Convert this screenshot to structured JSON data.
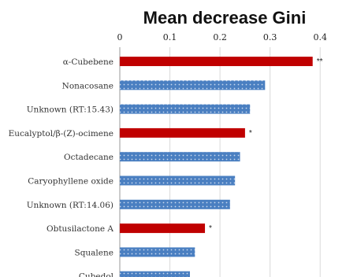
{
  "chart_data": {
    "type": "bar",
    "orientation": "horizontal",
    "title": "Mean decrease Gini",
    "xlabel": "",
    "ylabel": "",
    "xlim": [
      0,
      0.45
    ],
    "ticks": [
      "0",
      "0.1",
      "0.2",
      "0.3",
      "0.4"
    ],
    "tick_values": [
      0,
      0.1,
      0.2,
      0.3,
      0.4
    ],
    "grid": true,
    "categories": [
      "α-Cubebene",
      "Nonacosane",
      "Unknown (RT:15.43)",
      "Eucalyptol/β-(Z)-ocimene",
      "Octadecane",
      "Caryophyllene oxide",
      "Unknown (RT:14.06)",
      "Obtusilactone A",
      "Squalene",
      "Cubedol"
    ],
    "values": [
      0.385,
      0.29,
      0.26,
      0.25,
      0.24,
      0.23,
      0.22,
      0.17,
      0.15,
      0.14
    ],
    "annotations": [
      "**",
      "",
      "",
      "*",
      "",
      "",
      "",
      "*",
      "",
      ""
    ],
    "highlight": [
      true,
      false,
      false,
      true,
      false,
      false,
      false,
      true,
      false,
      false
    ],
    "colors": {
      "highlight": "#c00000",
      "normal": "#4a7fc1",
      "normal_dots": "#c9d9ef",
      "grid": "#d9d9d9",
      "axis": "#999999"
    }
  }
}
